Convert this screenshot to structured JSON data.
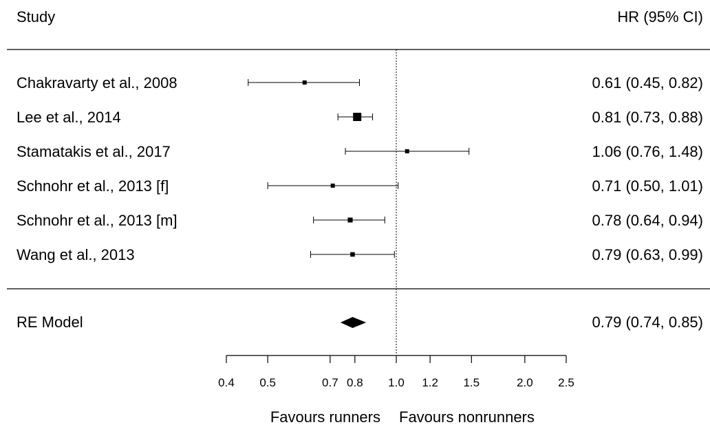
{
  "header": {
    "study_label": "Study",
    "estimate_label": "HR (95% CI)"
  },
  "chart_data": {
    "type": "forest",
    "log_scale": true,
    "xlim": [
      0.4,
      2.5
    ],
    "null_line": 1.0,
    "studies": [
      {
        "label": "Chakravarty et al., 2008",
        "hr": 0.61,
        "lo": 0.45,
        "hi": 0.82,
        "ci_text": "0.61 (0.45, 0.82)",
        "weight": 1
      },
      {
        "label": "Lee et al., 2014",
        "hr": 0.81,
        "lo": 0.73,
        "hi": 0.88,
        "ci_text": "0.81 (0.73, 0.88)",
        "weight": 4
      },
      {
        "label": "Stamatakis et al., 2017",
        "hr": 1.06,
        "lo": 0.76,
        "hi": 1.48,
        "ci_text": "1.06 (0.76, 1.48)",
        "weight": 1
      },
      {
        "label": "Schnohr et al., 2013 [f]",
        "hr": 0.71,
        "lo": 0.5,
        "hi": 1.01,
        "ci_text": "0.71 (0.50, 1.01)",
        "weight": 1
      },
      {
        "label": "Schnohr et al., 2013 [m]",
        "hr": 0.78,
        "lo": 0.64,
        "hi": 0.94,
        "ci_text": "0.78 (0.64, 0.94)",
        "weight": 1.4
      },
      {
        "label": "Wang et al., 2013",
        "hr": 0.79,
        "lo": 0.63,
        "hi": 0.99,
        "ci_text": "0.79 (0.63, 0.99)",
        "weight": 1.2
      }
    ],
    "summary": {
      "label": "RE Model",
      "hr": 0.79,
      "lo": 0.74,
      "hi": 0.85,
      "ci_text": "0.79 (0.74, 0.85)"
    },
    "x_ticks": [
      0.4,
      0.5,
      0.7,
      0.8,
      1.0,
      1.2,
      1.5,
      2.0,
      2.5
    ],
    "x_tick_labels": [
      "0.4",
      "0.5",
      "0.7",
      "0.8",
      "1.0",
      "1.2",
      "1.5",
      "2.0",
      "2.5"
    ],
    "favours_left": "Favours runners",
    "favours_right": "Favours nonrunners"
  }
}
